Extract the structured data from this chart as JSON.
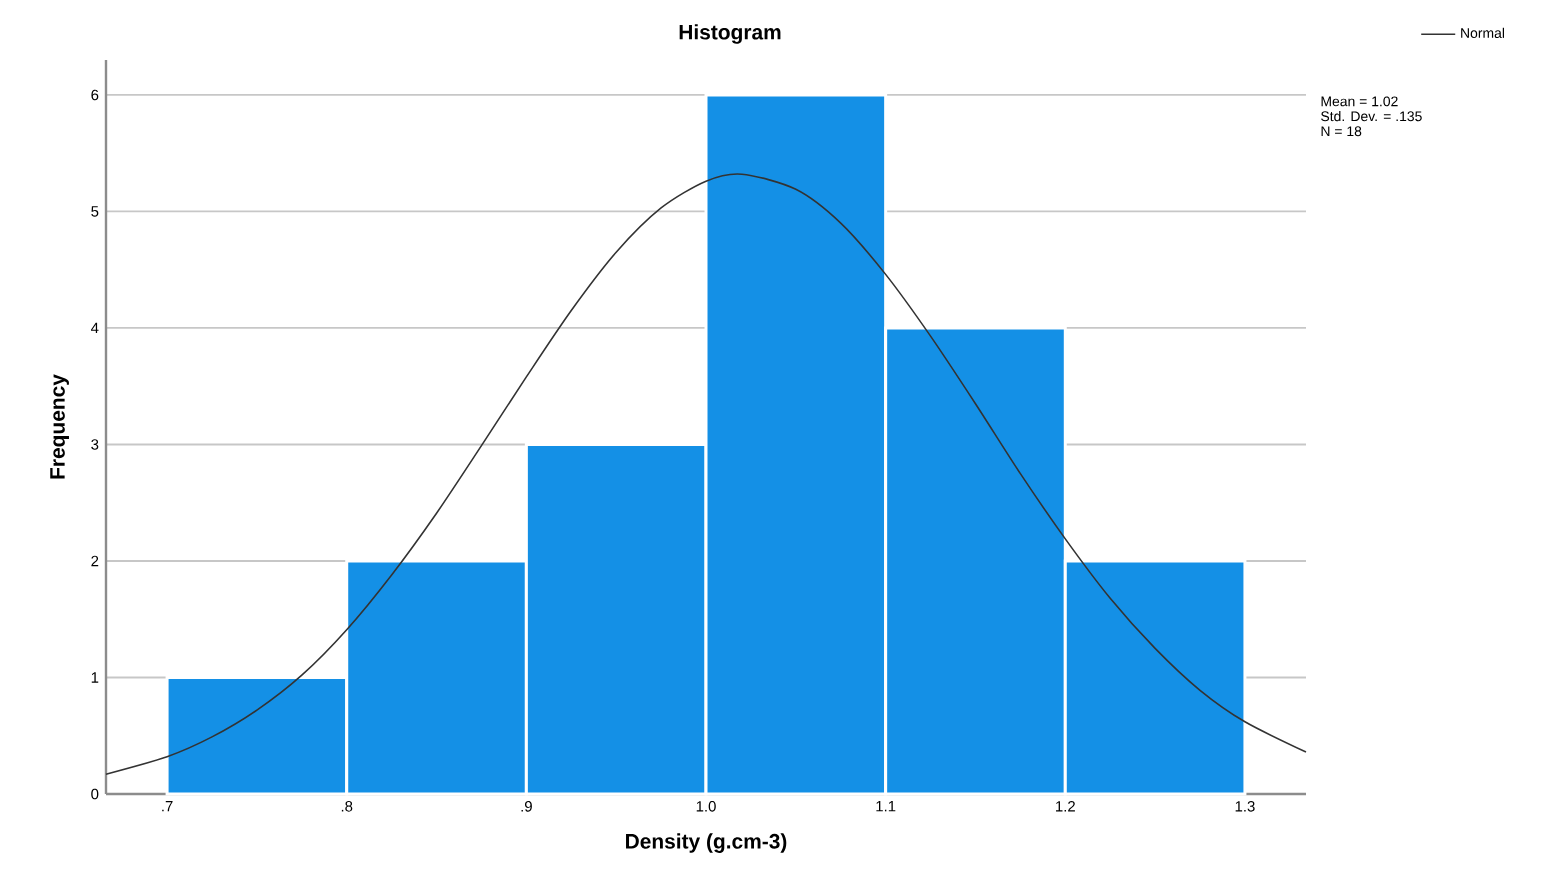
{
  "chart_data": {
    "type": "histogram",
    "title": "Histogram",
    "xlabel": "Density (g.cm-3)",
    "ylabel": "Frequency",
    "bins": [
      0.7,
      0.8,
      0.9,
      1.0,
      1.1,
      1.2,
      1.3
    ],
    "series": [
      {
        "color": "#1490e6",
        "values": [
          1,
          2,
          3,
          6,
          4,
          2
        ]
      },
      {
        "type": "line",
        "name": "Normal",
        "color": "#333333",
        "x": [
          0.666,
          0.7,
          0.725,
          0.75,
          0.775,
          0.8,
          0.825,
          0.85,
          0.875,
          0.9,
          0.925,
          0.95,
          0.975,
          1.0,
          1.02,
          1.05,
          1.075,
          1.1,
          1.125,
          1.15,
          1.175,
          1.2,
          1.225,
          1.25,
          1.275,
          1.3,
          1.334
        ],
        "values": [
          0.17,
          0.32,
          0.49,
          0.72,
          1.02,
          1.41,
          1.88,
          2.41,
          2.99,
          3.58,
          4.15,
          4.65,
          5.03,
          5.26,
          5.32,
          5.19,
          4.9,
          4.46,
          3.93,
          3.35,
          2.75,
          2.19,
          1.68,
          1.25,
          0.89,
          0.62,
          0.36
        ]
      }
    ],
    "xlim": [
      0.666,
      1.334
    ],
    "ylim": [
      0,
      6.3
    ],
    "xticks": [
      {
        "value": 0.7,
        "label": ".7"
      },
      {
        "value": 0.8,
        "label": ".8"
      },
      {
        "value": 0.9,
        "label": ".9"
      },
      {
        "value": 1.0,
        "label": "1.0"
      },
      1.1,
      1.2,
      1.3
    ],
    "yticks": [
      0,
      1,
      2,
      3,
      4,
      5,
      6
    ],
    "grid": "y",
    "legend": "top right",
    "marker": "none",
    "line_style": "solid",
    "annotations": [
      "Mean = 1.02",
      "Std. Dev. = .135",
      "N = 18"
    ]
  }
}
